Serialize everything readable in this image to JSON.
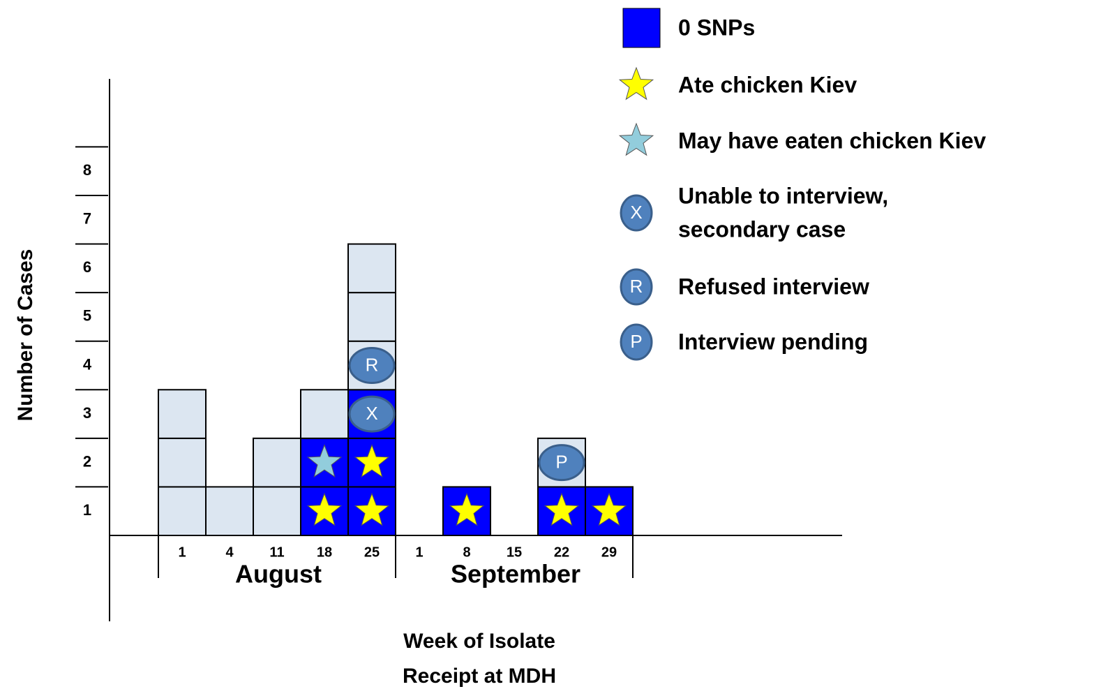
{
  "chart_data": {
    "type": "epicurve",
    "ylabel": "Number of Cases",
    "xlabel": [
      "Week of Isolate",
      "Receipt at MDH"
    ],
    "groups": [
      {
        "name": "August",
        "categories": [
          "1",
          "4",
          "11",
          "18",
          "25"
        ]
      },
      {
        "name": "September",
        "categories": [
          "1",
          "8",
          "15",
          "22",
          "29"
        ]
      }
    ],
    "values": [
      3,
      1,
      2,
      3,
      6,
      0,
      1,
      0,
      2,
      1
    ],
    "cases": [
      [
        {
          "fill": null,
          "symbol": null
        },
        {
          "fill": null,
          "symbol": null
        },
        {
          "fill": null,
          "symbol": null
        }
      ],
      [
        {
          "fill": null,
          "symbol": null
        }
      ],
      [
        {
          "fill": null,
          "symbol": null
        },
        {
          "fill": null,
          "symbol": null
        }
      ],
      [
        {
          "fill": "0 SNPs",
          "symbol": "Ate chicken Kiev"
        },
        {
          "fill": "0 SNPs",
          "symbol": "May have eaten chicken Kiev"
        },
        {
          "fill": null,
          "symbol": null
        }
      ],
      [
        {
          "fill": "0 SNPs",
          "symbol": "Ate chicken Kiev"
        },
        {
          "fill": "0 SNPs",
          "symbol": "Ate chicken Kiev"
        },
        {
          "fill": "0 SNPs",
          "symbol": "X"
        },
        {
          "fill": null,
          "symbol": "R"
        },
        {
          "fill": null,
          "symbol": null
        },
        {
          "fill": null,
          "symbol": null
        }
      ],
      [],
      [
        {
          "fill": "0 SNPs",
          "symbol": "Ate chicken Kiev"
        }
      ],
      [],
      [
        {
          "fill": "0 SNPs",
          "symbol": "Ate chicken Kiev"
        },
        {
          "fill": null,
          "symbol": "P"
        }
      ],
      [
        {
          "fill": "0 SNPs",
          "symbol": "Ate chicken Kiev"
        }
      ]
    ],
    "color": "#dce6f1",
    "ylim": [
      0,
      9.4
    ],
    "yticks": [
      1,
      2,
      3,
      4,
      5,
      6,
      7,
      8
    ],
    "legend": [
      {
        "label": [
          "0 SNPs"
        ],
        "kind": "box",
        "color": "#0000ff"
      },
      {
        "label": [
          "Ate chicken Kiev"
        ],
        "kind": "star",
        "color": "#ffff00"
      },
      {
        "label": [
          "May have eaten chicken Kiev"
        ],
        "kind": "star",
        "color": "#92cddc"
      },
      {
        "label": [
          "Unable to interview,",
          "secondary case"
        ],
        "kind": "circle",
        "letter": "X",
        "color": "#4f81bd"
      },
      {
        "label": [
          "Refused interview"
        ],
        "kind": "circle",
        "letter": "R",
        "color": "#4f81bd"
      },
      {
        "label": [
          "Interview pending"
        ],
        "kind": "circle",
        "letter": "P",
        "color": "#4f81bd"
      }
    ]
  }
}
